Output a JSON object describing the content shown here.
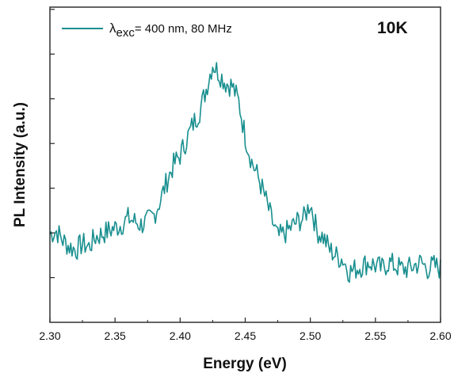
{
  "chart_data": {
    "type": "line",
    "xlabel": "Energy (eV)",
    "ylabel": "PL Intensity (a.u.)",
    "xlim": [
      2.3,
      2.6
    ],
    "ylim": [
      0,
      1
    ],
    "x_ticks": [
      "2.30",
      "2.35",
      "2.40",
      "2.45",
      "2.50",
      "2.55",
      "2.60"
    ],
    "y_ticks_labeled": false,
    "y_tick_count": 7,
    "grid": false,
    "legend_position": "top-left",
    "annotation": "10K",
    "legend": {
      "lambda_symbol": "λ",
      "lambda_sub": "exc",
      "rest": "= 400 nm, 80 MHz"
    },
    "series": [
      {
        "name": "λexc= 400 nm, 80 MHz",
        "color": "#1a8f8f",
        "x": [
          2.3,
          2.305,
          2.31,
          2.315,
          2.32,
          2.325,
          2.33,
          2.335,
          2.34,
          2.345,
          2.35,
          2.355,
          2.36,
          2.365,
          2.37,
          2.375,
          2.38,
          2.385,
          2.39,
          2.395,
          2.4,
          2.405,
          2.41,
          2.415,
          2.42,
          2.425,
          2.43,
          2.435,
          2.44,
          2.445,
          2.45,
          2.455,
          2.46,
          2.465,
          2.47,
          2.475,
          2.48,
          2.485,
          2.49,
          2.495,
          2.5,
          2.505,
          2.51,
          2.515,
          2.52,
          2.525,
          2.53,
          2.535,
          2.54,
          2.545,
          2.55,
          2.555,
          2.56,
          2.565,
          2.57,
          2.575,
          2.58,
          2.585,
          2.59,
          2.595,
          2.6
        ],
        "values": [
          0.28,
          0.29,
          0.26,
          0.24,
          0.23,
          0.25,
          0.24,
          0.27,
          0.28,
          0.29,
          0.3,
          0.31,
          0.33,
          0.32,
          0.31,
          0.32,
          0.34,
          0.39,
          0.45,
          0.5,
          0.53,
          0.58,
          0.63,
          0.67,
          0.74,
          0.82,
          0.79,
          0.76,
          0.75,
          0.7,
          0.59,
          0.51,
          0.46,
          0.4,
          0.33,
          0.27,
          0.28,
          0.3,
          0.32,
          0.33,
          0.38,
          0.29,
          0.27,
          0.23,
          0.21,
          0.2,
          0.16,
          0.17,
          0.18,
          0.19,
          0.18,
          0.17,
          0.19,
          0.18,
          0.17,
          0.17,
          0.18,
          0.19,
          0.17,
          0.18,
          0.17
        ]
      }
    ]
  }
}
